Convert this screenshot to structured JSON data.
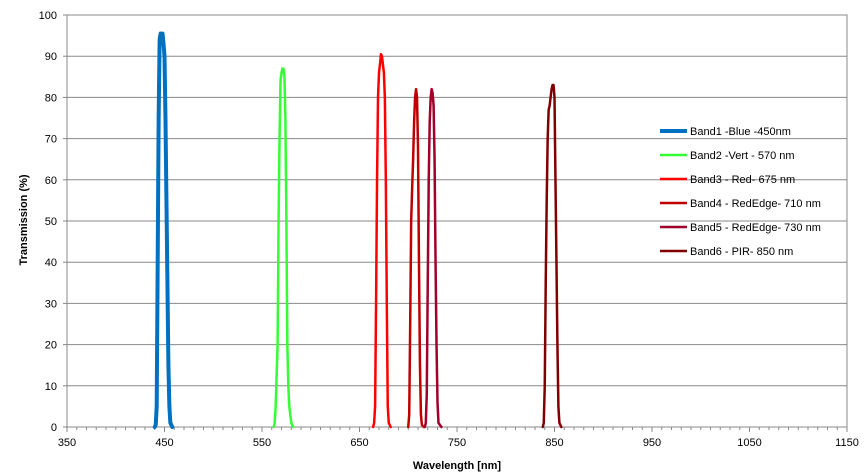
{
  "chart_data": {
    "type": "line",
    "title": "",
    "xlabel": "Wavelength [nm]",
    "ylabel": "Transmission   (%)",
    "xlim": [
      350,
      1150
    ],
    "ylim": [
      0,
      100
    ],
    "xticks": [
      350,
      450,
      550,
      650,
      750,
      850,
      950,
      1050,
      1150
    ],
    "yticks": [
      0,
      10,
      20,
      30,
      40,
      50,
      60,
      70,
      80,
      90,
      100
    ],
    "grid": "horizontal",
    "legend_position": "right",
    "series": [
      {
        "name": "Band1 -Blue -450nm",
        "color": "#0070C0",
        "thick": true,
        "points": [
          [
            440,
            0
          ],
          [
            441,
            0.5
          ],
          [
            442,
            5
          ],
          [
            443,
            40
          ],
          [
            444,
            75
          ],
          [
            445,
            94
          ],
          [
            446,
            95.5
          ],
          [
            447,
            95
          ],
          [
            448,
            95.5
          ],
          [
            449,
            93
          ],
          [
            450,
            90
          ],
          [
            451,
            75
          ],
          [
            452,
            55
          ],
          [
            453,
            35
          ],
          [
            454,
            15
          ],
          [
            455,
            5
          ],
          [
            456,
            1
          ],
          [
            458,
            0
          ]
        ]
      },
      {
        "name": "Band2 -Vert - 570 nm",
        "color": "#33FF33",
        "thick": false,
        "points": [
          [
            562,
            0
          ],
          [
            563,
            1
          ],
          [
            564,
            5
          ],
          [
            566,
            20
          ],
          [
            567,
            50
          ],
          [
            568,
            70
          ],
          [
            569,
            84
          ],
          [
            570,
            86
          ],
          [
            571,
            87
          ],
          [
            572,
            87
          ],
          [
            573,
            85
          ],
          [
            574,
            75
          ],
          [
            575,
            50
          ],
          [
            576,
            20
          ],
          [
            577,
            10
          ],
          [
            578,
            5
          ],
          [
            580,
            1
          ],
          [
            582,
            0
          ]
        ]
      },
      {
        "name": "Band3 - Red- 675 nm",
        "color": "#FF0000",
        "thick": false,
        "points": [
          [
            664,
            0
          ],
          [
            665,
            1
          ],
          [
            666,
            5
          ],
          [
            667,
            30
          ],
          [
            668,
            60
          ],
          [
            669,
            80
          ],
          [
            670,
            86
          ],
          [
            671,
            88
          ],
          [
            672,
            90.5
          ],
          [
            673,
            90
          ],
          [
            674,
            88
          ],
          [
            675,
            86
          ],
          [
            676,
            80
          ],
          [
            677,
            60
          ],
          [
            678,
            30
          ],
          [
            679,
            5
          ],
          [
            680,
            1
          ],
          [
            682,
            0
          ]
        ]
      },
      {
        "name": "Band4 - RedEdge- 710 nm",
        "color": "#C00000",
        "thick": false,
        "points": [
          [
            700,
            0
          ],
          [
            701,
            3
          ],
          [
            702,
            25
          ],
          [
            703,
            50
          ],
          [
            704,
            58
          ],
          [
            705,
            65
          ],
          [
            706,
            74
          ],
          [
            707,
            80
          ],
          [
            708,
            82
          ],
          [
            709,
            80
          ],
          [
            710,
            68
          ],
          [
            711,
            40
          ],
          [
            712,
            15
          ],
          [
            713,
            3
          ],
          [
            714,
            0.5
          ],
          [
            716,
            0
          ]
        ]
      },
      {
        "name": "Band5 - RedEdge- 730 nm",
        "color": "#A0002A",
        "thick": false,
        "points": [
          [
            717,
            0
          ],
          [
            718,
            1
          ],
          [
            719,
            8
          ],
          [
            720,
            35
          ],
          [
            721,
            60
          ],
          [
            722,
            74
          ],
          [
            723,
            80
          ],
          [
            724,
            82
          ],
          [
            725,
            81
          ],
          [
            726,
            78
          ],
          [
            727,
            65
          ],
          [
            728,
            40
          ],
          [
            729,
            20
          ],
          [
            730,
            6
          ],
          [
            731,
            1
          ],
          [
            734,
            0
          ]
        ]
      },
      {
        "name": "Band6 - PIR- 850 nm",
        "color": "#800000",
        "thick": false,
        "points": [
          [
            838,
            0
          ],
          [
            839,
            1
          ],
          [
            840,
            10
          ],
          [
            841,
            35
          ],
          [
            842,
            55
          ],
          [
            843,
            70
          ],
          [
            844,
            77
          ],
          [
            845,
            78
          ],
          [
            846,
            80
          ],
          [
            847,
            82
          ],
          [
            848,
            83
          ],
          [
            849,
            83
          ],
          [
            850,
            80
          ],
          [
            851,
            60
          ],
          [
            852,
            40
          ],
          [
            853,
            20
          ],
          [
            854,
            5
          ],
          [
            855,
            1
          ],
          [
            857,
            0
          ]
        ]
      }
    ]
  }
}
